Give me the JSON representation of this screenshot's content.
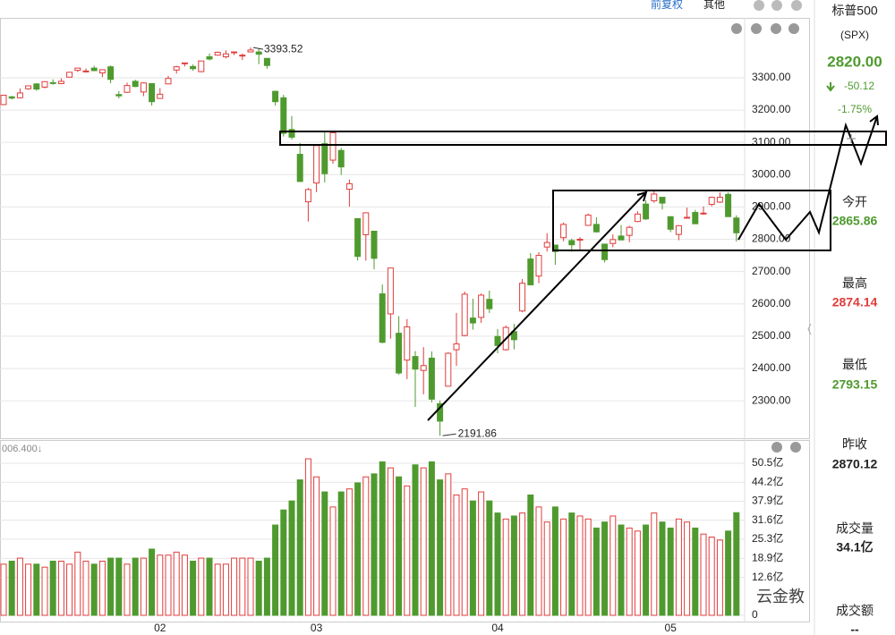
{
  "toolbar": {
    "adjust": "前复权",
    "other": "其他"
  },
  "quote": {
    "name": "标普500",
    "code": "(SPX)",
    "price": "2820.00",
    "change": "-50.12",
    "change_pct": "-1.75%",
    "open_label": "今开",
    "open": "2865.86",
    "high_label": "最高",
    "high": "2874.14",
    "low_label": "最低",
    "low": "2793.15",
    "prev_label": "昨收",
    "prev": "2870.12",
    "volume_label": "成交量",
    "volume": "34.1亿",
    "amount_label": "成交额",
    "amount": "--"
  },
  "watermark": "云金教",
  "chart_data": {
    "type": "candlestick",
    "categories": [
      null,
      null,
      null,
      null,
      null,
      null,
      null,
      null,
      null,
      null,
      null,
      null,
      null,
      null,
      null,
      null,
      null,
      null,
      null,
      "02",
      null,
      null,
      null,
      null,
      null,
      null,
      null,
      null,
      null,
      null,
      null,
      null,
      null,
      null,
      null,
      null,
      null,
      null,
      "03",
      null,
      null,
      null,
      null,
      null,
      null,
      null,
      null,
      null,
      null,
      null,
      null,
      null,
      null,
      null,
      null,
      null,
      null,
      null,
      null,
      null,
      "04",
      null,
      null,
      null,
      null,
      null,
      null,
      null,
      null,
      null,
      null,
      null,
      null,
      null,
      null,
      null,
      null,
      null,
      null,
      null,
      null,
      "05",
      null,
      null,
      null,
      null,
      null,
      null,
      null,
      null
    ],
    "open": [
      3217,
      3241,
      3238,
      3266,
      3281,
      3271,
      3285,
      3282,
      3302,
      3323,
      3321,
      3330,
      3315,
      3334,
      3248,
      3255,
      3289,
      3256,
      3282,
      3236,
      3281,
      3324,
      3344,
      3335,
      3319,
      3365,
      3370,
      3365,
      3378,
      3369,
      3380,
      3380,
      3360,
      3258,
      3238,
      3140,
      3063,
      2916,
      2974,
      3096,
      3045,
      3075,
      2955,
      2864,
      2814,
      2825,
      2631,
      2569,
      2509,
      2426,
      2437,
      2394,
      2432,
      2291,
      2345,
      2458,
      2502,
      2556,
      2558,
      2614,
      2499,
      2458,
      2514,
      2578,
      2739,
      2686,
      2776,
      2782,
      2805,
      2796,
      2799,
      2843,
      2846,
      2785,
      2787,
      2810,
      2812,
      2855,
      2909,
      2919,
      2930,
      2870,
      2815,
      2868,
      2883,
      2879,
      2908,
      2915,
      2939,
      2865.86
    ],
    "high": [
      3247,
      3244,
      3267,
      3276,
      3283,
      3289,
      3295,
      3298,
      3317,
      3330,
      3329,
      3337,
      3326,
      3338,
      3259,
      3285,
      3294,
      3286,
      3283,
      3268,
      3306,
      3337,
      3347,
      3341,
      3352,
      3375,
      3381,
      3385,
      3381,
      3375,
      3393.52,
      3390,
      3360,
      3260,
      3247,
      3182,
      3098,
      2959,
      3091,
      3136,
      3131,
      3083,
      2985,
      2864,
      2882,
      2825,
      2660,
      2711,
      2562,
      2553,
      2454,
      2466,
      2453,
      2301,
      2450,
      2572,
      2638,
      2616,
      2632,
      2641,
      2522,
      2533,
      2538,
      2677,
      2757,
      2760,
      2819,
      2782,
      2852,
      2802,
      2807,
      2880,
      2868,
      2785,
      2815,
      2844,
      2842,
      2887,
      2921,
      2954,
      2931,
      2870,
      2844,
      2898,
      2891,
      2902,
      2932,
      2945,
      2945,
      2874.14
    ],
    "low": [
      3215,
      3233,
      3236,
      3263,
      3260,
      3267,
      3278,
      3280,
      3302,
      3318,
      3316,
      3321,
      3302,
      3283,
      3236,
      3253,
      3271,
      3243,
      3214,
      3236,
      3281,
      3313,
      3335,
      3322,
      3317,
      3354,
      3370,
      3360,
      3370,
      3355,
      3379,
      3342,
      3328,
      3214,
      3118,
      3108,
      2977,
      2855,
      2946,
      2976,
      3034,
      2999,
      2901,
      2734,
      2734,
      2707,
      2478,
      2492,
      2381,
      2367,
      2281,
      2320,
      2295,
      2191.86,
      2345,
      2408,
      2500,
      2520,
      2541,
      2572,
      2447,
      2455,
      2459,
      2574,
      2657,
      2664,
      2762,
      2721,
      2794,
      2761,
      2765,
      2842,
      2821,
      2728,
      2775,
      2797,
      2791,
      2853,
      2860,
      2913,
      2892,
      2822,
      2797,
      2864,
      2847,
      2876,
      2902,
      2912,
      2869,
      2793.15
    ],
    "close": [
      3246,
      3237,
      3253,
      3275,
      3265,
      3288,
      3283,
      3289,
      3317,
      3330,
      3321,
      3322,
      3325,
      3295,
      3244,
      3276,
      3273,
      3284,
      3226,
      3249,
      3298,
      3334,
      3346,
      3328,
      3352,
      3358,
      3379,
      3374,
      3380,
      3370,
      3386,
      3373,
      3338,
      3226,
      3128,
      3116,
      2979,
      2954,
      3090,
      3003,
      3130,
      3024,
      2972,
      2747,
      2882,
      2741,
      2481,
      2711,
      2386,
      2529,
      2398,
      2409,
      2305,
      2237,
      2447,
      2476,
      2630,
      2541,
      2627,
      2585,
      2471,
      2527,
      2489,
      2664,
      2659,
      2750,
      2790,
      2762,
      2846,
      2783,
      2800,
      2875,
      2823,
      2737,
      2799,
      2798,
      2837,
      2878,
      2863,
      2940,
      2912,
      2831,
      2842,
      2868,
      2848,
      2881,
      2930,
      2930,
      2870.12,
      2820
    ],
    "up_color": "#e03c3c",
    "down_color": "#4f9a2f",
    "ylim": [
      2184,
      3430
    ],
    "yticks": [
      {
        "value": 2300,
        "label": "2300.00"
      },
      {
        "value": 2400,
        "label": "2400.00"
      },
      {
        "value": 2500,
        "label": "2500.00"
      },
      {
        "value": 2600,
        "label": "2600.00"
      },
      {
        "value": 2700,
        "label": "2700.00"
      },
      {
        "value": 2800,
        "label": "2800.00"
      },
      {
        "value": 2900,
        "label": "2900.00"
      },
      {
        "value": 3000,
        "label": "3000.00"
      },
      {
        "value": 3100,
        "label": "3100.00"
      },
      {
        "value": 3200,
        "label": "3200.00"
      },
      {
        "value": 3300,
        "label": "3300.00"
      }
    ],
    "grid": true,
    "max_label": "3393.52",
    "min_label": "2191.86",
    "volume": {
      "header": "006.400↓",
      "values": [
        17,
        18,
        19,
        17,
        17,
        16,
        18,
        18,
        17,
        21,
        18,
        17,
        18,
        19,
        19,
        17,
        19,
        19,
        22,
        20,
        20,
        21,
        20,
        18,
        19,
        19,
        17,
        17,
        19,
        19,
        19,
        18,
        19,
        30,
        35,
        38,
        45,
        52,
        46,
        41,
        36,
        41,
        42,
        44,
        46,
        47,
        51,
        49,
        46,
        43,
        50,
        49,
        51,
        45,
        47,
        40,
        42,
        38,
        41,
        38,
        34,
        32,
        33,
        34,
        40,
        36,
        31,
        36,
        32,
        34,
        33,
        32,
        29,
        31,
        33,
        30,
        29,
        28,
        30,
        34,
        31,
        29,
        32,
        31,
        29,
        27,
        26,
        25,
        28,
        34.1
      ],
      "ylim": [
        0,
        52.3
      ],
      "yticks": [
        0,
        {
          "value": 12.6,
          "label": "12.6亿"
        },
        {
          "value": 18.9,
          "label": "18.9亿"
        },
        {
          "value": 25.3,
          "label": "25.3亿"
        },
        {
          "value": 31.6,
          "label": "31.6亿"
        },
        {
          "value": 37.9,
          "label": "37.9亿"
        },
        {
          "value": 44.2,
          "label": "44.2亿"
        },
        {
          "value": 50.5,
          "label": "50.5亿"
        }
      ]
    }
  }
}
